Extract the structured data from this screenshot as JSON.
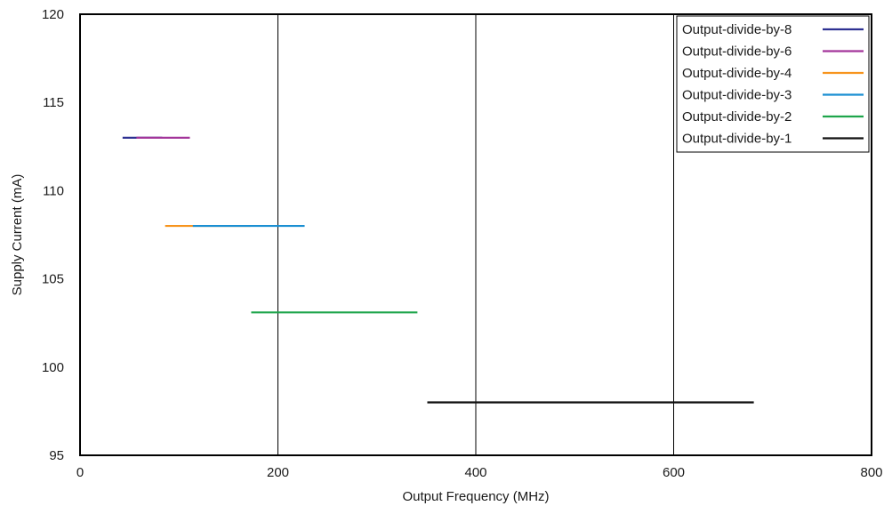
{
  "chart_data": {
    "type": "line",
    "title": "",
    "xlabel": "Output Frequency (MHz)",
    "ylabel": "Supply Current (mA)",
    "xlim": [
      0,
      800
    ],
    "ylim": [
      95,
      120
    ],
    "xticks": [
      0,
      200,
      400,
      600,
      800
    ],
    "yticks": [
      95,
      100,
      105,
      110,
      115,
      120
    ],
    "grid": "vertical lines at x ticks",
    "legend_position": "top-right",
    "series": [
      {
        "name": "Output-divide-by-8",
        "color": "#2e3192",
        "x": [
          43,
          83
        ],
        "y": [
          113,
          113
        ]
      },
      {
        "name": "Output-divide-by-6",
        "color": "#a3359a",
        "x": [
          57,
          111
        ],
        "y": [
          113,
          113
        ]
      },
      {
        "name": "Output-divide-by-4",
        "color": "#f7941d",
        "x": [
          86,
          172
        ],
        "y": [
          108,
          108
        ]
      },
      {
        "name": "Output-divide-by-3",
        "color": "#1b8fd2",
        "x": [
          114,
          227
        ],
        "y": [
          108,
          108
        ]
      },
      {
        "name": "Output-divide-by-2",
        "color": "#1ea54b",
        "x": [
          173,
          341
        ],
        "y": [
          103.1,
          103.1
        ]
      },
      {
        "name": "Output-divide-by-1",
        "color": "#111111",
        "x": [
          351,
          681
        ],
        "y": [
          98,
          98
        ]
      }
    ]
  }
}
